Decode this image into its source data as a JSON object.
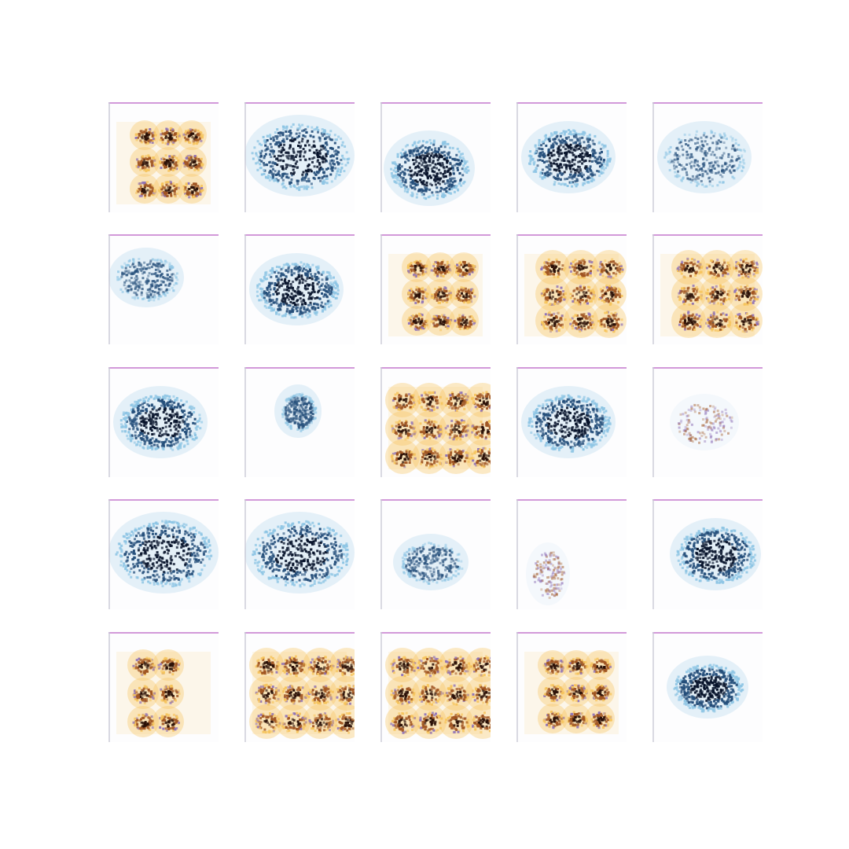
{
  "figure": {
    "grid": {
      "rows": 5,
      "cols": 5
    },
    "samples": [
      {
        "row": 1,
        "col": 1,
        "style": "orange-grid",
        "cluster": "3x3"
      },
      {
        "row": 1,
        "col": 2,
        "style": "dark-blue-blob",
        "cluster": "wide"
      },
      {
        "row": 1,
        "col": 3,
        "style": "dark-blue-blob",
        "cluster": "lower"
      },
      {
        "row": 1,
        "col": 4,
        "style": "dark-blue-blob",
        "cluster": "medium"
      },
      {
        "row": 1,
        "col": 5,
        "style": "light-blue-blob",
        "cluster": "medium"
      },
      {
        "row": 2,
        "col": 1,
        "style": "light-blue-blob",
        "cluster": "small-left"
      },
      {
        "row": 2,
        "col": 2,
        "style": "dark-blue-blob",
        "cluster": "medium"
      },
      {
        "row": 2,
        "col": 3,
        "style": "orange-grid",
        "cluster": "3x3"
      },
      {
        "row": 2,
        "col": 4,
        "style": "orange-grid",
        "cluster": "3x3-dense"
      },
      {
        "row": 2,
        "col": 5,
        "style": "orange-grid",
        "cluster": "3x3-dense"
      },
      {
        "row": 3,
        "col": 1,
        "style": "dark-blue-blob",
        "cluster": "medium"
      },
      {
        "row": 3,
        "col": 2,
        "style": "light-blue-blob",
        "cluster": "tiny"
      },
      {
        "row": 3,
        "col": 3,
        "style": "orange-grid",
        "cluster": "4x3-dense"
      },
      {
        "row": 3,
        "col": 4,
        "style": "dark-blue-blob",
        "cluster": "medium"
      },
      {
        "row": 3,
        "col": 5,
        "style": "faint-mixed",
        "cluster": "small"
      },
      {
        "row": 4,
        "col": 1,
        "style": "dark-blue-blob",
        "cluster": "wide"
      },
      {
        "row": 4,
        "col": 2,
        "style": "dark-blue-blob",
        "cluster": "wide"
      },
      {
        "row": 4,
        "col": 3,
        "style": "light-blue-blob",
        "cluster": "small-lower"
      },
      {
        "row": 4,
        "col": 4,
        "style": "faint-mixed",
        "cluster": "column-left"
      },
      {
        "row": 4,
        "col": 5,
        "style": "dark-blue-blob",
        "cluster": "medium-right"
      },
      {
        "row": 5,
        "col": 1,
        "style": "orange-grid",
        "cluster": "2x3"
      },
      {
        "row": 5,
        "col": 2,
        "style": "orange-grid",
        "cluster": "4x3-dense"
      },
      {
        "row": 5,
        "col": 3,
        "style": "orange-grid",
        "cluster": "4x3-dense"
      },
      {
        "row": 5,
        "col": 4,
        "style": "orange-grid",
        "cluster": "3x3"
      },
      {
        "row": 5,
        "col": 5,
        "style": "dark-blue-blob",
        "cluster": "compact"
      }
    ],
    "colors": {
      "background": "#ffffff",
      "tile_background": "#fdfdfe",
      "top_stripe": "#c77fd0",
      "left_stripe": "#c9c9d6",
      "dark_blue": "#06122a",
      "mid_blue": "#244e7a",
      "light_blue": "#8ec5e4",
      "orange_dark": "#2a0f06",
      "orange_mid": "#a05522",
      "orange_light": "#f6c45c",
      "purple": "#8f72b8"
    }
  }
}
